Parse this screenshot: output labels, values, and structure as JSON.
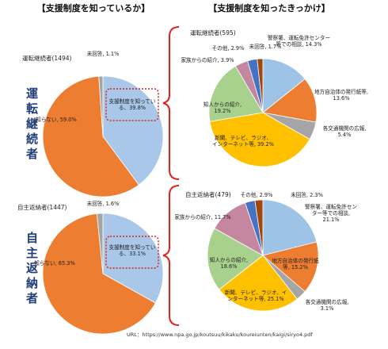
{
  "headers": [
    "【支援制度を知っているか】",
    "【支援制度を知ったきっかけ】"
  ],
  "row_labels": [
    "運転継続者",
    "自主返納者"
  ],
  "source": "URL：https://www.npa.go.jp/koutsuu/kikaku/koureiunten/kaigi/siryo4.pdf",
  "chart_data": [
    {
      "type": "pie",
      "title": "運転継続者(1494)",
      "values": [
        39.8,
        59.0,
        1.1
      ],
      "value_labels": [
        "支援制度を知っている、39.8%",
        "知らない, 59.0%",
        "未回答, 1.1%"
      ],
      "colors": [
        "#a9c7e8",
        "#ed7d31",
        "#a5a5a5"
      ]
    },
    {
      "type": "pie",
      "title": "運転継続者(595)",
      "values": [
        14.3,
        13.6,
        5.4,
        39.2,
        19.2,
        3.9,
        2.9,
        1.7
      ],
      "value_labels": [
        "警察署、運転免許センター等での相談, 14.3%",
        "地方自治体の発行紙等, 13.6%",
        "各交通機関の広報, 5.4%",
        "新聞、テレビ、ラジオ、インターネット等, 39.2%",
        "知人からの紹介, 19.2%",
        "家族からの紹介, 3.9%",
        "その他, 2.9%",
        "未回答, 1.7%"
      ],
      "colors": [
        "#9dc3e6",
        "#ed7d31",
        "#a5a5a5",
        "#ffc000",
        "#a9d18e",
        "#c4879f",
        "#4472c4",
        "#9e480e"
      ]
    },
    {
      "type": "pie",
      "title": "自主返納者(1447)",
      "values": [
        33.1,
        65.3,
        1.6
      ],
      "value_labels": [
        "支援制度を知っている、33.1%",
        "知らない, 65.3%",
        "未回答, 1.6%"
      ],
      "colors": [
        "#a9c7e8",
        "#ed7d31",
        "#a5a5a5"
      ]
    },
    {
      "type": "pie",
      "title": "自主返納者(479)",
      "values": [
        21.1,
        15.2,
        3.1,
        25.1,
        18.6,
        11.7,
        2.9,
        2.3
      ],
      "value_labels": [
        "警察署、運転免許センター等での相談, 21.1%",
        "地方自治体の発行紙等, 15.2%",
        "各交通機関の広報, 3.1%",
        "新聞、テレビ、ラジオ、インターネット等, 25.1%",
        "知人からの紹介, 18.6%",
        "家族からの紹介, 11.7%",
        "その他, 2.9%",
        "未回答, 2.3%"
      ],
      "colors": [
        "#9dc3e6",
        "#ed7d31",
        "#a5a5a5",
        "#ffc000",
        "#a9d18e",
        "#c4879f",
        "#4472c4",
        "#9e480e"
      ]
    }
  ]
}
